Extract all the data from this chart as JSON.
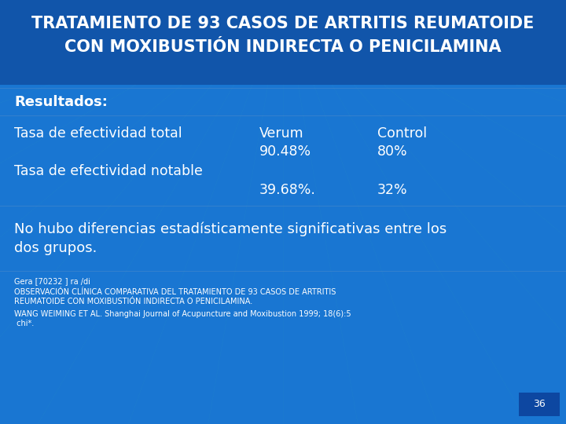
{
  "title_line1": "TRATAMIENTO DE 93 CASOS DE ARTRITIS REUMATOIDE",
  "title_line2": "CON MOXIBUSTIÓN INDIRECTA O PENICILAMINA",
  "resultados_label": "Resultados:",
  "row1_col1": "Tasa de efectividad total",
  "row1_col2": "Verum",
  "row1_col3": "Control",
  "row2_col2": "90.48%",
  "row2_col3": "80%",
  "row3_col1": "Tasa de efectividad notable",
  "row4_col2": "39.68%.",
  "row4_col3": "32%",
  "note_line1": "No hubo diferencias estadísticamente significativas entre los",
  "note_line2": "dos grupos.",
  "footer1": "Gera [70232 ] ra /di",
  "footer2a": "OBSERVACIÓN CLÍNICA COMPARATIVA DEL TRATAMIENTO DE 93 CASOS DE ARTRITIS",
  "footer2b": "REUMATOIDE CON MOXIBUSTIÓN INDIRECTA O PENICILAMINA.",
  "footer3a": "WANG WEIMING ET AL. Shanghai Journal of Acupuncture and Moxibustion 1999; 18(6):5",
  "footer3b": " chi*.",
  "page_num": "36",
  "bg_color": "#1565C0",
  "bg_color_main": "#1976D2",
  "title_color": "#FFFFFF",
  "text_color": "#FFFFFF",
  "title_fontsize": 15,
  "resultados_fontsize": 13,
  "body_fontsize": 12.5,
  "note_fontsize": 13,
  "footer_fontsize": 7,
  "divider_color": "#4488CC",
  "header_bg": "#1155AA"
}
